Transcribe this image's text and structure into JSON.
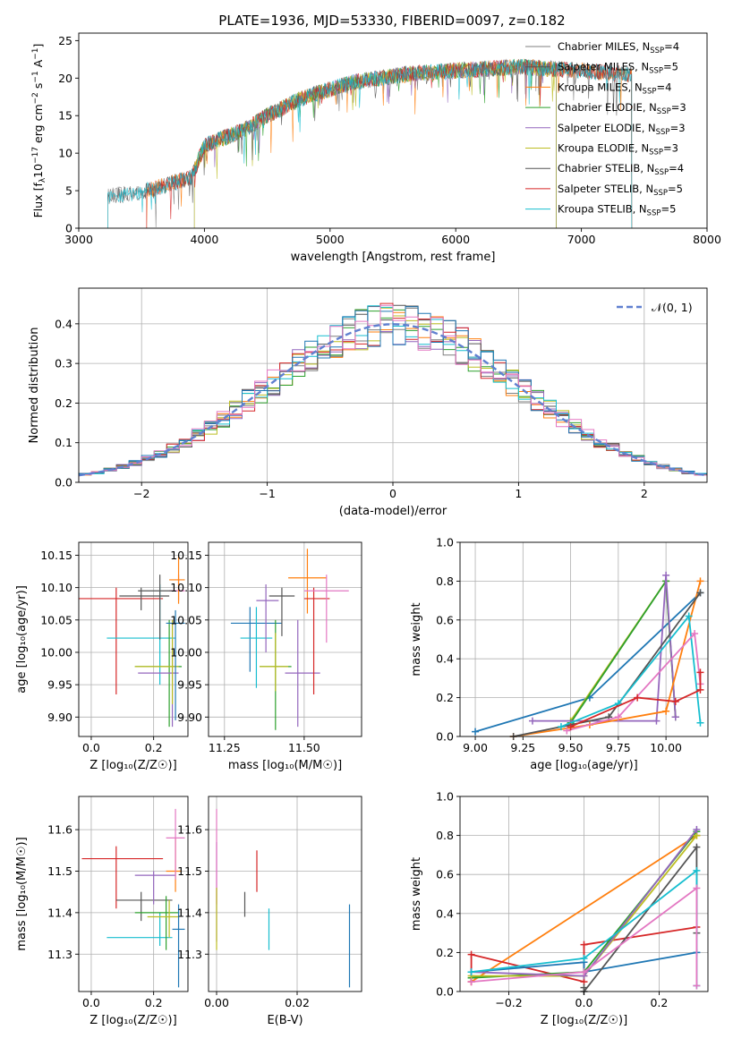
{
  "figure_title": "PLATE=1936, MJD=53330, FIBERID=0097, z=0.182",
  "colors": {
    "grey": "#7f7f7f",
    "orange": "#ff7f0e",
    "green": "#2ca02c",
    "purple": "#9467bd",
    "yellow": "#bcbd22",
    "dark": "#555555",
    "red": "#d62728",
    "cyan": "#17becf",
    "blue": "#1f77b4",
    "pink": "#e377c2",
    "normal": "#6080d0"
  },
  "chart_data": [
    {
      "id": "spectrum",
      "type": "line",
      "xlabel": "wavelength [Angstrom, rest frame]",
      "ylabel": "Flux [f",
      "xlim": [
        3000,
        8000
      ],
      "ylim": [
        0,
        26
      ],
      "xticks": [
        3000,
        4000,
        5000,
        6000,
        7000,
        8000
      ],
      "yticks": [
        0,
        5,
        10,
        15,
        20,
        25
      ],
      "legend_position": "top-right",
      "series": [
        {
          "name": "Chabrier MILES, N",
          "suffix": "=4",
          "color": "grey",
          "start": 3230,
          "end": 7400
        },
        {
          "name": "Salpeter MILES, N",
          "suffix": "=5",
          "color": "dark",
          "start": 3540,
          "end": 7400
        },
        {
          "name": "Kroupa MILES, N",
          "suffix": "=4",
          "color": "orange",
          "start": 3540,
          "end": 7400
        },
        {
          "name": "Chabrier ELODIE, N",
          "suffix": "=3",
          "color": "green",
          "start": 3920,
          "end": 6800
        },
        {
          "name": "Salpeter ELODIE, N",
          "suffix": "=3",
          "color": "purple",
          "start": 3920,
          "end": 6800
        },
        {
          "name": "Kroupa ELODIE, N",
          "suffix": "=3",
          "color": "yellow",
          "start": 3920,
          "end": 6800
        },
        {
          "name": "Chabrier STELIB, N",
          "suffix": "=4",
          "color": "dark",
          "start": 3230,
          "end": 7400
        },
        {
          "name": "Salpeter STELIB, N",
          "suffix": "=5",
          "color": "red",
          "start": 3540,
          "end": 7400
        },
        {
          "name": "Kroupa STELIB, N",
          "suffix": "=5",
          "color": "cyan",
          "start": 3230,
          "end": 7400
        }
      ]
    },
    {
      "id": "residuals",
      "type": "histogram",
      "xlabel": "(data-model)/error",
      "ylabel": "Normed distribution",
      "xlim": [
        -2.5,
        2.5
      ],
      "ylim": [
        0,
        0.49
      ],
      "xticks": [
        -2,
        -1,
        0,
        1,
        2
      ],
      "yticks": [
        0.0,
        0.1,
        0.2,
        0.3,
        0.4
      ],
      "grid": true,
      "legend_position": "top-right",
      "legend_label": "𝒩(0, 1)",
      "bin_width": 0.1,
      "series_colors": [
        "grey",
        "orange",
        "green",
        "purple",
        "yellow",
        "dark",
        "red",
        "cyan",
        "blue",
        "pink"
      ]
    },
    {
      "id": "age_vs_Z",
      "type": "errorbar",
      "xlabel": "Z [log₁₀(Z/Z☉)]",
      "ylabel": "age  [log₁₀(age/yr)]",
      "xlim": [
        -0.04,
        0.31
      ],
      "ylim": [
        9.87,
        10.17
      ],
      "xticks": [
        0.0,
        0.2
      ],
      "yticks": [
        9.9,
        9.95,
        10.0,
        10.05,
        10.1,
        10.15
      ],
      "grid": true,
      "points": [
        {
          "x": 0.08,
          "y": 10.083,
          "xlo": -0.04,
          "xhi": 0.23,
          "ylo": 9.935,
          "yhi": 10.1,
          "color": "red"
        },
        {
          "x": 0.16,
          "y": 10.087,
          "xlo": 0.09,
          "xhi": 0.25,
          "ylo": 10.065,
          "yhi": 10.1,
          "color": "dark"
        },
        {
          "x": 0.22,
          "y": 10.022,
          "xlo": 0.05,
          "xhi": 0.27,
          "ylo": 9.95,
          "yhi": 10.105,
          "color": "cyan"
        },
        {
          "x": 0.25,
          "y": 9.978,
          "xlo": 0.14,
          "xhi": 0.29,
          "ylo": 9.885,
          "yhi": 10.05,
          "color": "green"
        },
        {
          "x": 0.26,
          "y": 9.968,
          "xlo": 0.15,
          "xhi": 0.28,
          "ylo": 9.885,
          "yhi": 10.05,
          "color": "purple"
        },
        {
          "x": 0.26,
          "y": 9.978,
          "xlo": 0.14,
          "xhi": 0.28,
          "ylo": 9.92,
          "yhi": 10.05,
          "color": "yellow"
        },
        {
          "x": 0.27,
          "y": 10.045,
          "xlo": 0.24,
          "xhi": 0.3,
          "ylo": 9.895,
          "yhi": 10.065,
          "color": "blue"
        },
        {
          "x": 0.28,
          "y": 10.095,
          "xlo": 0.25,
          "xhi": 0.3,
          "ylo": 10.08,
          "yhi": 10.12,
          "color": "pink"
        },
        {
          "x": 0.28,
          "y": 10.112,
          "xlo": 0.25,
          "xhi": 0.3,
          "ylo": 10.075,
          "yhi": 10.15,
          "color": "orange"
        },
        {
          "x": 0.22,
          "y": 10.095,
          "xlo": 0.15,
          "xhi": 0.26,
          "ylo": 10.02,
          "yhi": 10.12,
          "color": "dark"
        }
      ]
    },
    {
      "id": "age_vs_mass",
      "type": "errorbar",
      "xlabel": "mass [log₁₀(M/M☉)]",
      "xlim": [
        11.2,
        11.68
      ],
      "ylim": [
        9.87,
        10.17
      ],
      "xticks": [
        11.25,
        11.5
      ],
      "yticks": [
        9.9,
        9.95,
        10.0,
        10.05,
        10.1,
        10.15
      ],
      "grid": true,
      "points": [
        {
          "x": 11.33,
          "y": 10.045,
          "xlo": 11.27,
          "xhi": 11.43,
          "ylo": 9.97,
          "yhi": 10.07,
          "color": "blue"
        },
        {
          "x": 11.35,
          "y": 10.022,
          "xlo": 11.3,
          "xhi": 11.4,
          "ylo": 9.945,
          "yhi": 10.07,
          "color": "cyan"
        },
        {
          "x": 11.38,
          "y": 10.08,
          "xlo": 11.35,
          "xhi": 11.42,
          "ylo": 10.0,
          "yhi": 10.105,
          "color": "purple"
        },
        {
          "x": 11.41,
          "y": 9.978,
          "xlo": 11.36,
          "xhi": 11.46,
          "ylo": 9.88,
          "yhi": 10.05,
          "color": "green"
        },
        {
          "x": 11.41,
          "y": 9.978,
          "xlo": 11.36,
          "xhi": 11.45,
          "ylo": 9.94,
          "yhi": 10.03,
          "color": "yellow"
        },
        {
          "x": 11.43,
          "y": 10.087,
          "xlo": 11.39,
          "xhi": 11.47,
          "ylo": 10.025,
          "yhi": 10.1,
          "color": "dark"
        },
        {
          "x": 11.48,
          "y": 9.968,
          "xlo": 11.44,
          "xhi": 11.55,
          "ylo": 9.885,
          "yhi": 10.05,
          "color": "purple"
        },
        {
          "x": 11.51,
          "y": 10.115,
          "xlo": 11.45,
          "xhi": 11.57,
          "ylo": 10.06,
          "yhi": 10.16,
          "color": "orange"
        },
        {
          "x": 11.53,
          "y": 10.083,
          "xlo": 11.5,
          "xhi": 11.58,
          "ylo": 9.935,
          "yhi": 10.1,
          "color": "red"
        },
        {
          "x": 11.57,
          "y": 10.095,
          "xlo": 11.5,
          "xhi": 11.64,
          "ylo": 10.015,
          "yhi": 10.12,
          "color": "pink"
        }
      ]
    },
    {
      "id": "mw_vs_age",
      "type": "line",
      "xlabel": "age  [log₁₀(age/yr)]",
      "ylabel": "mass weight",
      "xlim": [
        8.92,
        10.22
      ],
      "ylim": [
        0,
        1
      ],
      "xticks": [
        9.0,
        9.25,
        9.5,
        9.75,
        10.0
      ],
      "yticks": [
        0.0,
        0.2,
        0.4,
        0.6,
        0.8,
        1.0
      ],
      "grid": true,
      "series": [
        {
          "color": "blue",
          "x": [
            9.0,
            9.6,
            10.18
          ],
          "y": [
            0.025,
            0.2,
            0.74
          ]
        },
        {
          "color": "yellow",
          "x": [
            9.5,
            10.0,
            10.05
          ],
          "y": [
            0.08,
            0.8,
            0.1
          ]
        },
        {
          "color": "green",
          "x": [
            9.5,
            10.0,
            10.05
          ],
          "y": [
            0.07,
            0.8,
            0.1
          ]
        },
        {
          "color": "purple",
          "x": [
            9.3,
            9.95,
            10.0,
            10.05
          ],
          "y": [
            0.08,
            0.08,
            0.83,
            0.1
          ]
        },
        {
          "color": "orange",
          "x": [
            9.2,
            9.6,
            10.0,
            10.18
          ],
          "y": [
            0.0,
            0.06,
            0.13,
            0.8
          ]
        },
        {
          "color": "dark",
          "x": [
            9.2,
            9.7,
            10.18
          ],
          "y": [
            0.0,
            0.1,
            0.74
          ]
        },
        {
          "color": "cyan",
          "x": [
            9.45,
            9.75,
            10.12,
            10.18
          ],
          "y": [
            0.05,
            0.17,
            0.62,
            0.07
          ]
        },
        {
          "color": "pink",
          "x": [
            9.48,
            9.75,
            10.15,
            10.18
          ],
          "y": [
            0.03,
            0.1,
            0.53,
            0.27
          ]
        },
        {
          "color": "red",
          "x": [
            9.5,
            9.85,
            10.05,
            10.18,
            10.18
          ],
          "y": [
            0.05,
            0.2,
            0.18,
            0.24,
            0.33
          ]
        }
      ]
    },
    {
      "id": "mass_vs_Z",
      "type": "errorbar",
      "xlabel": "Z [log₁₀(Z/Z☉)]",
      "ylabel": "mass [log₁₀(M/M☉)]",
      "xlim": [
        -0.04,
        0.31
      ],
      "ylim": [
        11.21,
        11.68
      ],
      "xticks": [
        0.0,
        0.2
      ],
      "yticks": [
        11.3,
        11.4,
        11.5,
        11.6
      ],
      "grid": true,
      "points": [
        {
          "x": 0.08,
          "y": 11.53,
          "xlo": -0.03,
          "xhi": 0.23,
          "ylo": 11.41,
          "yhi": 11.56,
          "color": "red"
        },
        {
          "x": 0.16,
          "y": 11.43,
          "xlo": 0.08,
          "xhi": 0.26,
          "ylo": 11.38,
          "yhi": 11.45,
          "color": "dark"
        },
        {
          "x": 0.2,
          "y": 11.49,
          "xlo": 0.14,
          "xhi": 0.27,
          "ylo": 11.42,
          "yhi": 11.5,
          "color": "purple"
        },
        {
          "x": 0.22,
          "y": 11.34,
          "xlo": 0.05,
          "xhi": 0.26,
          "ylo": 11.32,
          "yhi": 11.4,
          "color": "cyan"
        },
        {
          "x": 0.24,
          "y": 11.4,
          "xlo": 0.14,
          "xhi": 0.28,
          "ylo": 11.31,
          "yhi": 11.44,
          "color": "green"
        },
        {
          "x": 0.25,
          "y": 11.39,
          "xlo": 0.18,
          "xhi": 0.28,
          "ylo": 11.34,
          "yhi": 11.43,
          "color": "yellow"
        },
        {
          "x": 0.27,
          "y": 11.5,
          "xlo": 0.24,
          "xhi": 0.29,
          "ylo": 11.45,
          "yhi": 11.58,
          "color": "orange"
        },
        {
          "x": 0.27,
          "y": 11.58,
          "xlo": 0.24,
          "xhi": 0.3,
          "ylo": 11.48,
          "yhi": 11.65,
          "color": "pink"
        },
        {
          "x": 0.28,
          "y": 11.36,
          "xlo": 0.26,
          "xhi": 0.3,
          "ylo": 11.22,
          "yhi": 11.42,
          "color": "blue"
        }
      ]
    },
    {
      "id": "mass_vs_ebv",
      "type": "errorbar",
      "xlabel": "E(B-V)",
      "xlim": [
        -0.002,
        0.036
      ],
      "ylim": [
        11.21,
        11.68
      ],
      "xticks": [
        0.0,
        0.02
      ],
      "yticks": [
        11.3,
        11.4,
        11.5,
        11.6
      ],
      "grid": true,
      "points": [
        {
          "x": 0.0,
          "y": 11.45,
          "ylo": 11.33,
          "yhi": 11.57,
          "color": "purple"
        },
        {
          "x": 0.0,
          "y": 11.52,
          "ylo": 11.42,
          "yhi": 11.65,
          "color": "pink"
        },
        {
          "x": 0.0,
          "y": 11.38,
          "ylo": 11.31,
          "yhi": 11.46,
          "color": "yellow"
        },
        {
          "x": 0.007,
          "y": 11.42,
          "ylo": 11.39,
          "yhi": 11.45,
          "color": "dark"
        },
        {
          "x": 0.01,
          "y": 11.5,
          "ylo": 11.45,
          "yhi": 11.55,
          "color": "red"
        },
        {
          "x": 0.013,
          "y": 11.36,
          "ylo": 11.31,
          "yhi": 11.41,
          "color": "cyan"
        },
        {
          "x": 0.033,
          "y": 11.33,
          "ylo": 11.22,
          "yhi": 11.42,
          "color": "blue"
        }
      ]
    },
    {
      "id": "mw_vs_Z",
      "type": "line",
      "xlabel": "Z [log₁₀(Z/Z☉)]",
      "ylabel": "mass weight",
      "xlim": [
        -0.33,
        0.33
      ],
      "ylim": [
        0,
        1
      ],
      "xticks": [
        -0.2,
        0.0,
        0.2
      ],
      "yticks": [
        0.0,
        0.2,
        0.4,
        0.6,
        0.8,
        1.0
      ],
      "grid": true,
      "series": [
        {
          "color": "orange",
          "x": [
            -0.3,
            0.3
          ],
          "y": [
            0.05,
            0.8
          ]
        },
        {
          "color": "red",
          "x": [
            -0.3,
            -0.3,
            0.0,
            0.0,
            0.3
          ],
          "y": [
            0.05,
            0.19,
            0.05,
            0.24,
            0.33
          ]
        },
        {
          "color": "blue",
          "x": [
            -0.3,
            0.0,
            0.0,
            0.3
          ],
          "y": [
            0.1,
            0.15,
            0.1,
            0.2
          ]
        },
        {
          "color": "green",
          "x": [
            -0.3,
            0.0,
            0.3
          ],
          "y": [
            0.07,
            0.1,
            0.82
          ]
        },
        {
          "color": "yellow",
          "x": [
            -0.3,
            0.0,
            0.3
          ],
          "y": [
            0.08,
            0.08,
            0.8
          ]
        },
        {
          "color": "purple",
          "x": [
            -0.3,
            0.0,
            0.3
          ],
          "y": [
            0.1,
            0.08,
            0.83
          ]
        },
        {
          "color": "dark",
          "x": [
            0.0,
            0.0,
            0.3,
            0.3
          ],
          "y": [
            0.02,
            0.0,
            0.74,
            0.3
          ]
        },
        {
          "color": "cyan",
          "x": [
            -0.3,
            0.0,
            0.3,
            0.3
          ],
          "y": [
            0.1,
            0.17,
            0.62,
            0.03
          ]
        },
        {
          "color": "pink",
          "x": [
            -0.3,
            0.0,
            0.3,
            0.3
          ],
          "y": [
            0.05,
            0.1,
            0.53,
            0.03
          ]
        }
      ]
    }
  ]
}
